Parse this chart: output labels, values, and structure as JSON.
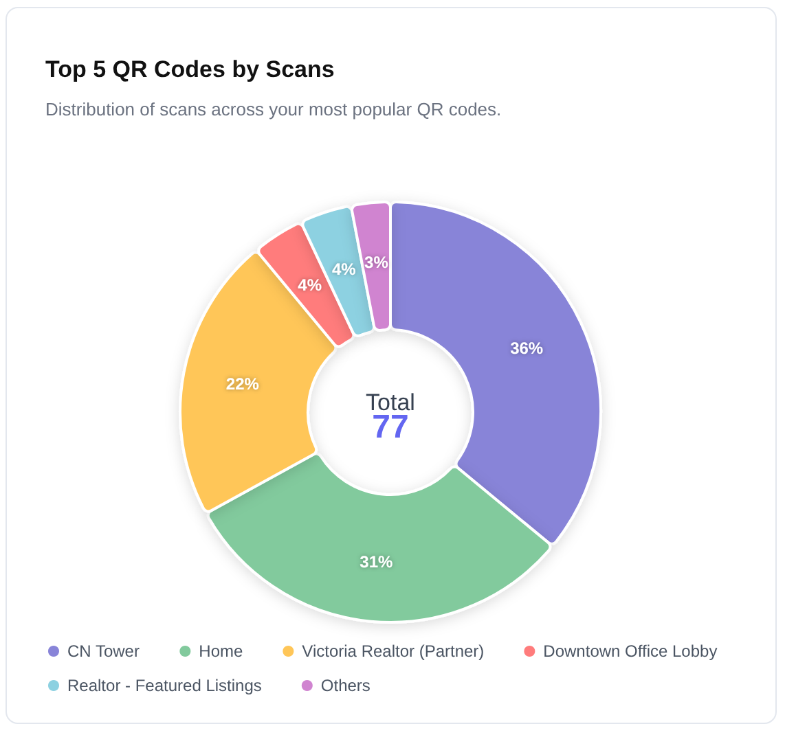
{
  "chart_data": {
    "type": "donut",
    "title": "Top 5 QR Codes by Scans",
    "subtitle": "Distribution of scans across your most popular QR codes.",
    "categories": [
      "CN Tower",
      "Home",
      "Victoria Realtor (Partner)",
      "Downtown Office Lobby",
      "Realtor - Featured Listings",
      "Others"
    ],
    "values": [
      36,
      31,
      22,
      4,
      4,
      3
    ],
    "colors": [
      "#8884d8",
      "#82ca9d",
      "#ffc658",
      "#ff7c7c",
      "#8dd1e1",
      "#d084d0"
    ],
    "value_labels": [
      "36%",
      "31%",
      "22%",
      "4%",
      "4%",
      "3%"
    ],
    "annotations": [
      "Total",
      "77"
    ],
    "legend": "bottom"
  }
}
